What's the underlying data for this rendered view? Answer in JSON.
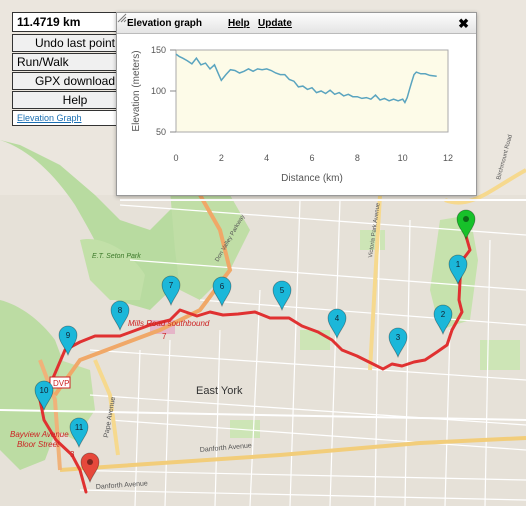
{
  "controls": {
    "distance": "11.4719 km",
    "undo_label": "Undo last point",
    "mode_selected": "Run/Walk",
    "gpx_label": "GPX download",
    "help_label": "Help",
    "elevation_link": "Elevation Graph"
  },
  "elevation_panel": {
    "title": "Elevation graph",
    "help_label": "Help",
    "update_label": "Update"
  },
  "chart_data": {
    "type": "line",
    "xlabel": "Distance (km)",
    "ylabel": "Elevation (meters)",
    "xlim": [
      0,
      12
    ],
    "ylim": [
      50,
      150
    ],
    "x_ticks": [
      "0",
      "2",
      "4",
      "6",
      "8",
      "10",
      "12"
    ],
    "y_ticks": [
      "50",
      "100",
      "150"
    ],
    "grid": false,
    "series": [
      {
        "x": [
          0,
          0.15,
          0.3,
          0.5,
          0.7,
          0.9,
          1.1,
          1.3,
          1.5,
          1.7,
          1.9,
          2.0,
          2.2,
          2.4,
          2.6,
          2.8,
          3.0,
          3.2,
          3.4,
          3.6,
          3.8,
          4.0,
          4.2,
          4.4,
          4.6,
          4.8,
          5.0,
          5.2,
          5.4,
          5.6,
          5.8,
          6.0,
          6.2,
          6.4,
          6.6,
          6.8,
          7.0,
          7.2,
          7.4,
          7.6,
          7.8,
          8.0,
          8.2,
          8.4,
          8.6,
          8.8,
          9.0,
          9.2,
          9.4,
          9.6,
          9.8,
          10.0,
          10.1,
          10.2,
          10.3,
          10.4,
          10.5,
          10.6,
          10.8,
          11.0,
          11.2,
          11.5
        ],
        "y": [
          145,
          142,
          140,
          137,
          133,
          140,
          132,
          134,
          127,
          132,
          119,
          113,
          120,
          126,
          125,
          122,
          124,
          127,
          124,
          127,
          126,
          127,
          125,
          122,
          120,
          120,
          114,
          112,
          105,
          106,
          102,
          104,
          98,
          100,
          97,
          101,
          96,
          98,
          94,
          96,
          93,
          93,
          91,
          92,
          90,
          95,
          89,
          91,
          88,
          90,
          88,
          90,
          86,
          92,
          102,
          111,
          120,
          123,
          121,
          121,
          119,
          118
        ]
      }
    ]
  },
  "markers": [
    {
      "label": "1"
    },
    {
      "label": "2"
    },
    {
      "label": "3"
    },
    {
      "label": "4"
    },
    {
      "label": "5"
    },
    {
      "label": "6"
    },
    {
      "label": "7"
    },
    {
      "label": "8"
    },
    {
      "label": "9"
    },
    {
      "label": "10"
    },
    {
      "label": "11"
    }
  ],
  "map_labels": {
    "east_york": "East York",
    "danforth": "Danforth Avenue",
    "danforth2": "Danforth Avenue",
    "pape": "Pape Avenue",
    "mills_road": "Mills Road southbound",
    "bayview": "Bayview Avenue",
    "bloor": "Bloor Street",
    "seton": "E.T. Seton Park",
    "dvp": "DVP",
    "don_valley": "Don Valley Parkway",
    "victoria_park": "Victoria Park Avenue",
    "birchmount": "Birchmount Road",
    "rout_three": "3",
    "rout_four": "4",
    "rout_seven": "7"
  },
  "colors": {
    "route": "#e03131",
    "marker": "#1bb7d9",
    "start_marker": "#17c12a",
    "end_marker": "#e6483b",
    "chart_line": "#5aa4bf"
  }
}
